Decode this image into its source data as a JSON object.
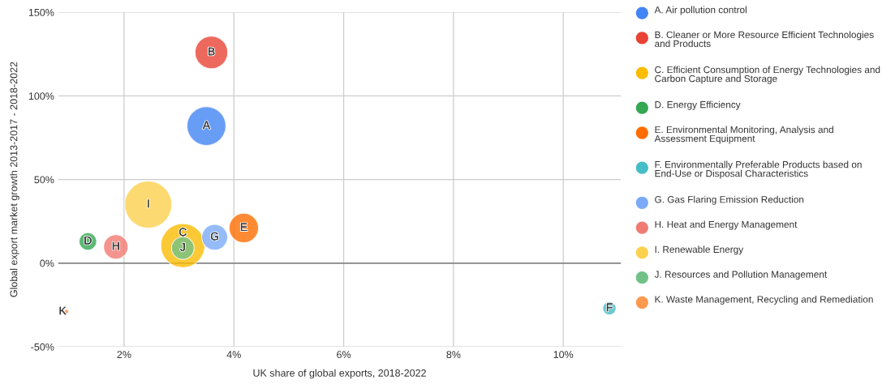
{
  "chart_data": {
    "type": "bubble",
    "xlabel": "UK share of global exports, 2018-2022",
    "ylabel": "Global export market growth 2013-2017 - 2018-2022",
    "xlim": [
      0.8,
      11.05
    ],
    "xticks": [
      {
        "value": 2,
        "label": "2%"
      },
      {
        "value": 4,
        "label": "4%"
      },
      {
        "value": 6,
        "label": "6%"
      },
      {
        "value": 8,
        "label": "8%"
      },
      {
        "value": 10,
        "label": "10%"
      }
    ],
    "ylim": [
      -50,
      150
    ],
    "yticks": [
      {
        "value": -50,
        "label": "-50%"
      },
      {
        "value": 0,
        "label": "0%"
      },
      {
        "value": 50,
        "label": "50%"
      },
      {
        "value": 100,
        "label": "100%"
      },
      {
        "value": 150,
        "label": "150%"
      }
    ],
    "grid": true,
    "legend": "right",
    "ref_lines": [
      {
        "axis": "y",
        "value": 0,
        "color": "#888888"
      }
    ],
    "series": [
      {
        "name": "A. Air pollution control",
        "color": "#4285f4",
        "x": [
          3.5
        ],
        "values": [
          82
        ],
        "sizes": [
          0.68
        ]
      },
      {
        "name": "B. Cleaner or More Resource Efficient Technologies and Products",
        "color": "#ea4335",
        "x": [
          3.59
        ],
        "values": [
          126
        ],
        "sizes": [
          0.48
        ]
      },
      {
        "name": "C. Efficient Consumption of Energy Technologies and Carbon Capture and Storage",
        "color": "#fbbc04",
        "x": [
          3.07
        ],
        "values": [
          10.5
        ],
        "sizes": [
          0.87
        ]
      },
      {
        "name": "D. Energy Efficiency",
        "color": "#34a853",
        "x": [
          1.34
        ],
        "values": [
          13
        ],
        "sizes": [
          0.14
        ]
      },
      {
        "name": "E. Environmental Monitoring, Analysis and Assessment Equipment",
        "color": "#ff6d01",
        "x": [
          4.18
        ],
        "values": [
          21
        ],
        "sizes": [
          0.39
        ]
      },
      {
        "name": "F. Environmentally Preferable Products based on End-Use or Disposal Characteristics",
        "color": "#46bdc6",
        "x": [
          10.84
        ],
        "values": [
          -27
        ],
        "sizes": [
          0.08
        ]
      },
      {
        "name": "G. Gas Flaring Emission Reduction",
        "color": "#7baaf7",
        "x": [
          3.65
        ],
        "values": [
          15.5
        ],
        "sizes": [
          0.3
        ]
      },
      {
        "name": "H. Heat and Energy Management",
        "color": "#f07b72",
        "x": [
          1.85
        ],
        "values": [
          9.7
        ],
        "sizes": [
          0.27
        ]
      },
      {
        "name": "I. Renewable Energy",
        "color": "#fcd04f",
        "x": [
          2.44
        ],
        "values": [
          35
        ],
        "sizes": [
          1
        ]
      },
      {
        "name": "J. Resources and Pollution Management",
        "color": "#71c287",
        "x": [
          3.07
        ],
        "values": [
          9
        ],
        "sizes": [
          0.23
        ]
      },
      {
        "name": "K. Waste Management, Recycling and Remediation",
        "color": "#ff994d",
        "x": [
          0.95
        ],
        "values": [
          -29
        ],
        "sizes": [
          0.01
        ]
      }
    ],
    "annotations": [
      {
        "text": "A",
        "x": 3.5,
        "y": 82
      },
      {
        "text": "B",
        "x": 3.59,
        "y": 126
      },
      {
        "text": "C",
        "x": 3.07,
        "y": 18
      },
      {
        "text": "D",
        "x": 1.34,
        "y": 13
      },
      {
        "text": "E",
        "x": 4.18,
        "y": 21
      },
      {
        "text": "F",
        "x": 10.84,
        "y": -27
      },
      {
        "text": "G",
        "x": 3.65,
        "y": 15.5
      },
      {
        "text": "H",
        "x": 1.85,
        "y": 9.7
      },
      {
        "text": "I",
        "x": 2.44,
        "y": 35
      },
      {
        "text": "J",
        "x": 3.07,
        "y": 9
      },
      {
        "text": "K",
        "x": 0.88,
        "y": -29
      }
    ]
  }
}
